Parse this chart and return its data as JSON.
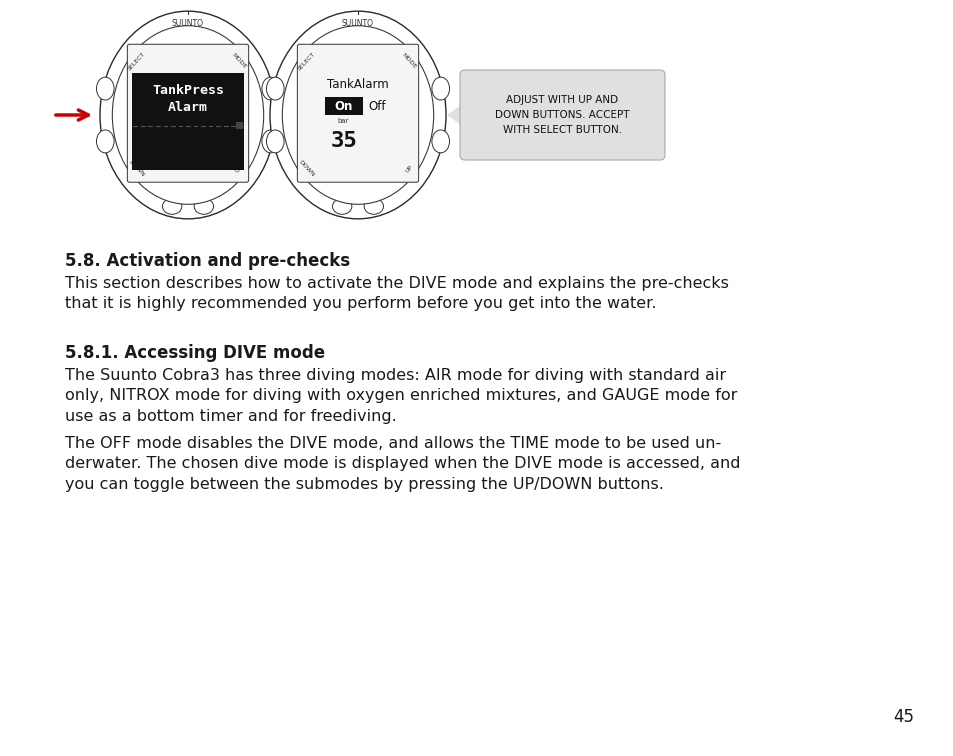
{
  "bg_color": "#ffffff",
  "page_number": "45",
  "section_title": "5.8. Activation and pre-checks",
  "section_body": "This section describes how to activate the DIVE mode and explains the pre-checks\nthat it is highly recommended you perform before you get into the water.",
  "subsection_title": "5.8.1. Accessing DIVE mode",
  "subsection_body1": "The Suunto Cobra3 has three diving modes: AIR mode for diving with standard air\nonly, NITROX mode for diving with oxygen enriched mixtures, and GAUGE mode for\nuse as a bottom timer and for freediving.",
  "subsection_body2": "The OFF mode disables the DIVE mode, and allows the TIME mode to be used un-\nderwater. The chosen dive mode is displayed when the DIVE mode is accessed, and\nyou can toggle between the submodes by pressing the UP/DOWN buttons.",
  "callout_text": "ADJUST WITH UP AND\nDOWN BUTTONS. ACCEPT\nWITH SELECT BUTTON.",
  "text_color": "#1a1a1a",
  "callout_bg": "#e0e0e0",
  "callout_border": "#aaaaaa",
  "arrow_color": "#cc0000",
  "display1_text_line1": "TankPress",
  "display1_text_line2": "Alarm",
  "display2_text_line1": "TankAlarm",
  "display2_text_on": "On",
  "display2_text_off": " Off",
  "display2_bar_label": "bar",
  "display2_value": "35"
}
